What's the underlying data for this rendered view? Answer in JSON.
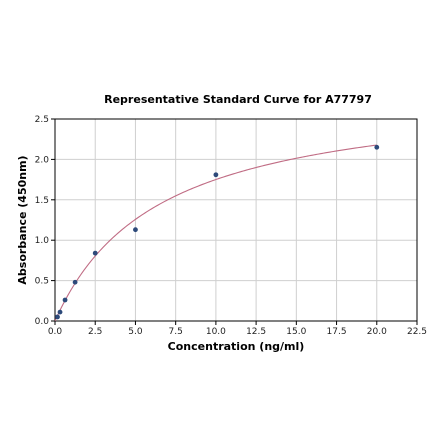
{
  "chart_data": {
    "type": "scatter",
    "title": "Representative Standard Curve for A77797",
    "xlabel": "Concentration (ng/ml)",
    "ylabel": "Absorbance (450nm)",
    "xlim": [
      0,
      22.5
    ],
    "ylim": [
      0,
      2.5
    ],
    "xticks": [
      "0.0",
      "2.5",
      "5.0",
      "7.5",
      "10.0",
      "12.5",
      "15.0",
      "17.5",
      "20.0",
      "22.5"
    ],
    "yticks": [
      "0.0",
      "0.5",
      "1.0",
      "1.5",
      "2.0",
      "2.5"
    ],
    "grid": true,
    "series": [
      {
        "kind": "points",
        "color": "#2d4a7a",
        "x": [
          0.156,
          0.3125,
          0.625,
          1.25,
          2.5,
          5.0,
          10.0,
          20.0
        ],
        "y": [
          0.05,
          0.11,
          0.26,
          0.48,
          0.84,
          1.13,
          1.81,
          2.15
        ]
      },
      {
        "kind": "fit-curve",
        "color": "#c06c84",
        "model": "y = 2.88 * x / (6.45 + x)"
      }
    ]
  }
}
